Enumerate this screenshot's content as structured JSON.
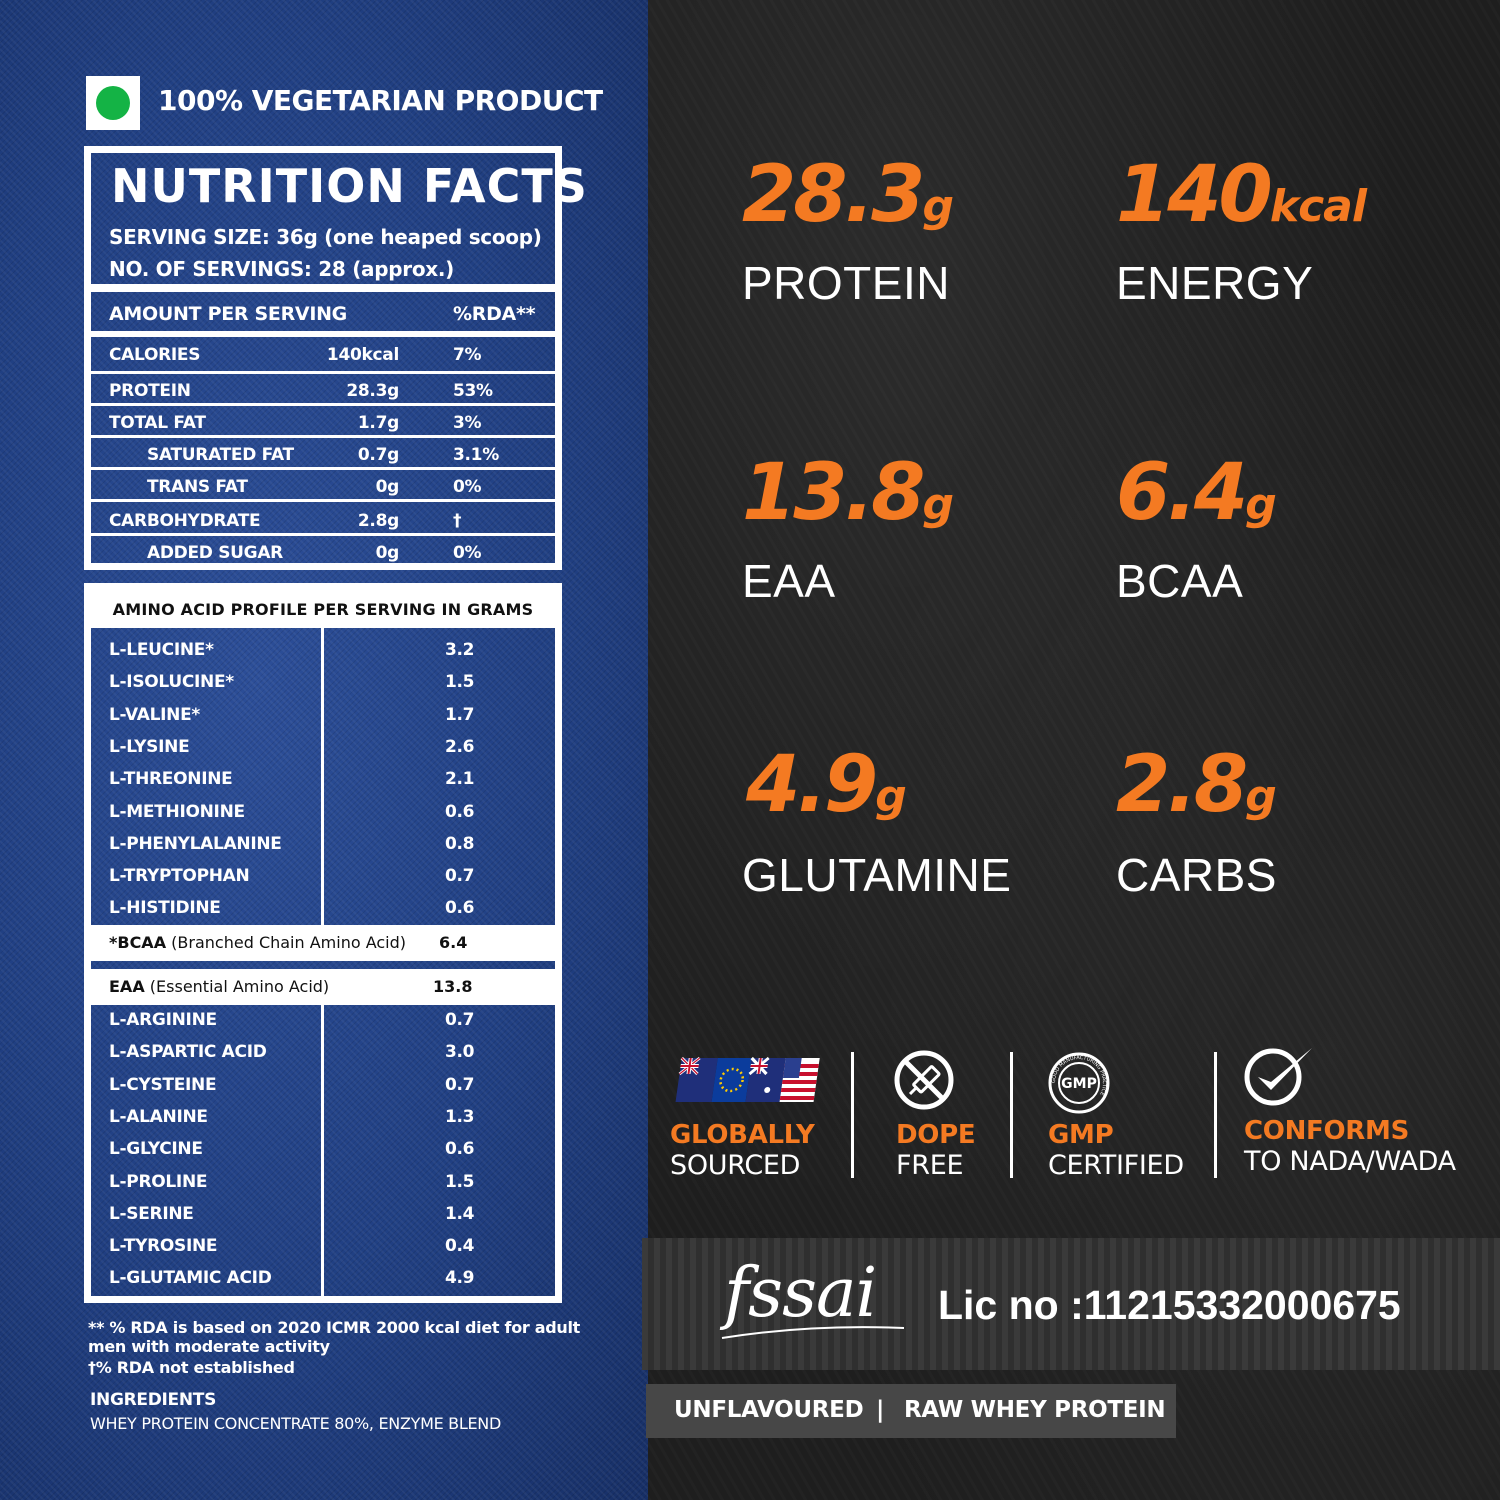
{
  "veg_label": "100% VEGETARIAN PRODUCT",
  "colors": {
    "accent": "#f47a22",
    "veg_green": "#14b345",
    "denim": "#203f82"
  },
  "nutrition": {
    "title": "NUTRITION FACTS",
    "serving_size": "SERVING SIZE: 36g (one heaped scoop)",
    "servings": "NO. OF SERVINGS: 28 (approx.)",
    "header_amount": "AMOUNT PER SERVING",
    "header_rda": "%RDA**",
    "rows": [
      {
        "label": "CALORIES",
        "amount": "140kcal",
        "rda": "7%"
      },
      {
        "label": "PROTEIN",
        "amount": "28.3g",
        "rda": "53%"
      },
      {
        "label": "TOTAL FAT",
        "amount": "1.7g",
        "rda": "3%"
      },
      {
        "label": "SATURATED FAT",
        "amount": "0.7g",
        "rda": "3.1%"
      },
      {
        "label": "TRANS FAT",
        "amount": "0g",
        "rda": "0%"
      },
      {
        "label": "CARBOHYDRATE",
        "amount": "2.8g",
        "rda": "†"
      },
      {
        "label": "ADDED SUGAR",
        "amount": "0g",
        "rda": "0%"
      }
    ]
  },
  "amino": {
    "title": "AMINO ACID PROFILE PER SERVING IN GRAMS",
    "essential": [
      {
        "name": "L-LEUCINE*",
        "value": "3.2"
      },
      {
        "name": "L-ISOLUCINE*",
        "value": "1.5"
      },
      {
        "name": "L-VALINE*",
        "value": "1.7"
      },
      {
        "name": "L-LYSINE",
        "value": "2.6"
      },
      {
        "name": "L-THREONINE",
        "value": "2.1"
      },
      {
        "name": "L-METHIONINE",
        "value": "0.6"
      },
      {
        "name": "L-PHENYLALANINE",
        "value": "0.8"
      },
      {
        "name": "L-TRYPTOPHAN",
        "value": "0.7"
      },
      {
        "name": "L-HISTIDINE",
        "value": "0.6"
      }
    ],
    "bcaa": {
      "abbr": "*BCAA",
      "desc": "(Branched Chain Amino Acid)",
      "value": "6.4"
    },
    "eaa": {
      "abbr": "EAA",
      "desc": "(Essential Amino Acid)",
      "value": "13.8"
    },
    "nonessential": [
      {
        "name": "L-ARGININE",
        "value": "0.7"
      },
      {
        "name": "L-ASPARTIC ACID",
        "value": "3.0"
      },
      {
        "name": "L-CYSTEINE",
        "value": "0.7"
      },
      {
        "name": "L-ALANINE",
        "value": "1.3"
      },
      {
        "name": "L-GLYCINE",
        "value": "0.6"
      },
      {
        "name": "L-PROLINE",
        "value": "1.5"
      },
      {
        "name": "L-SERINE",
        "value": "1.4"
      },
      {
        "name": "L-TYROSINE",
        "value": "0.4"
      },
      {
        "name": "L-GLUTAMIC ACID",
        "value": "4.9"
      }
    ]
  },
  "footnotes": {
    "rda_note_1": "** % RDA is based on 2020 ICMR 2000 kcal diet for adult",
    "rda_note_2": "men with moderate activity",
    "rda_note_3": "†% RDA not established",
    "ingredients_title": "INGREDIENTS",
    "ingredients": "WHEY  PROTEIN  CONCENTRATE  80%,  ENZYME  BLEND"
  },
  "stats": [
    {
      "num": "28.3",
      "unit": "g",
      "label": "PROTEIN"
    },
    {
      "num": "140",
      "unit": "kcal",
      "label": "ENERGY"
    },
    {
      "num": "13.8",
      "unit": "g",
      "label": "EAA"
    },
    {
      "num": "6.4",
      "unit": "g",
      "label": "BCAA"
    },
    {
      "num": "4.9",
      "unit": "g",
      "label": "GLUTAMINE"
    },
    {
      "num": "2.8",
      "unit": "g",
      "label": "CARBS"
    }
  ],
  "badges": [
    {
      "title": "GLOBALLY",
      "sub": "SOURCED",
      "icon": "flags-icon"
    },
    {
      "title": "DOPE",
      "sub": "FREE",
      "icon": "no-syringe-icon"
    },
    {
      "title": "GMP",
      "sub": "CERTIFIED",
      "icon": "gmp-seal-icon",
      "seal_text": "GMP",
      "seal_ring": "GOOD MANUFACTURING PRACTICE"
    },
    {
      "title": "CONFORMS",
      "sub": "TO NADA/WADA",
      "icon": "checkmark-icon"
    }
  ],
  "fssai": {
    "logo": "fssai",
    "license": "Lic no :11215332000675"
  },
  "bottom": {
    "flavour": "UNFLAVOURED",
    "divider": "|",
    "product": "RAW WHEY PROTEIN"
  }
}
